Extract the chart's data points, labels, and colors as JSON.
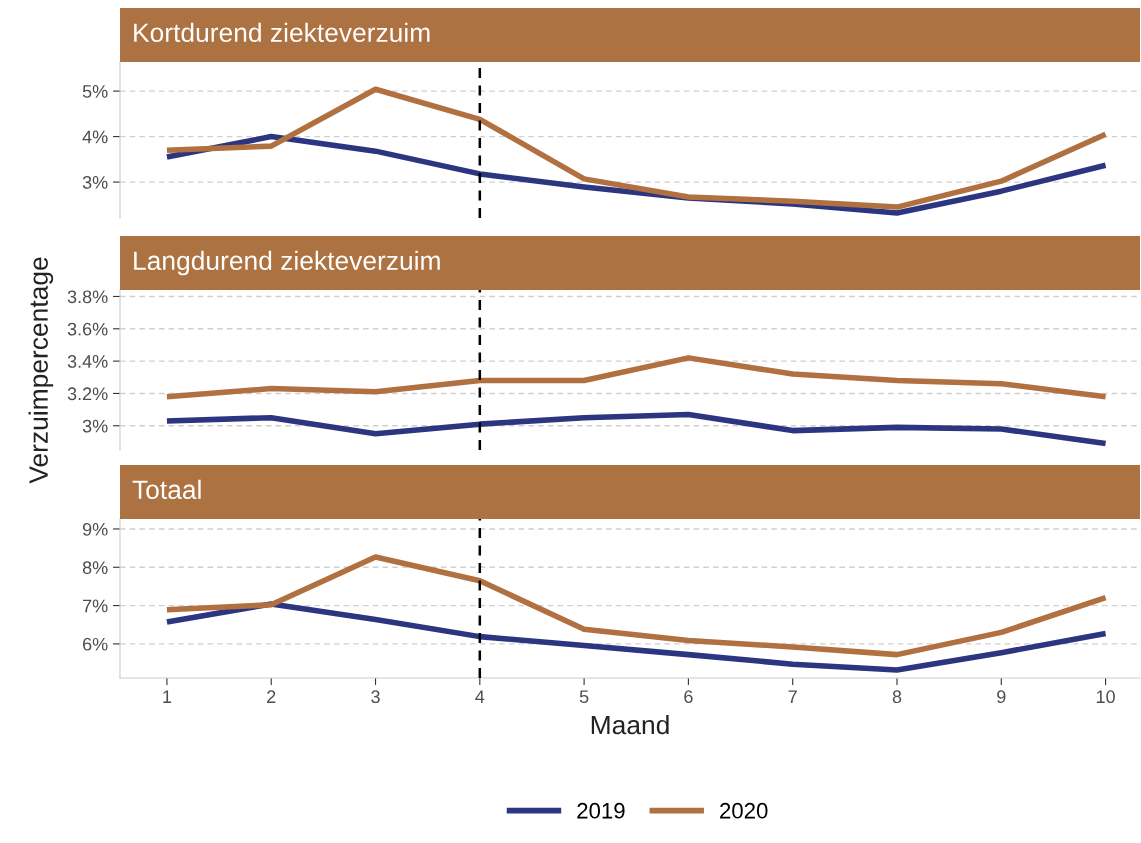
{
  "chart_data": [
    {
      "type": "line",
      "title": "Kortdurend ziekteverzuim",
      "x": [
        1,
        2,
        3,
        4,
        5,
        6,
        7,
        8,
        9,
        10
      ],
      "series": [
        {
          "name": "2019",
          "color": "#2b3580",
          "values": [
            3.55,
            4.0,
            3.68,
            3.18,
            2.89,
            2.65,
            2.52,
            2.32,
            2.8,
            3.37
          ]
        },
        {
          "name": "2020",
          "color": "#b07040",
          "values": [
            3.7,
            3.79,
            5.04,
            4.38,
            3.07,
            2.67,
            2.58,
            2.45,
            3.02,
            4.05
          ]
        }
      ],
      "xlim": [
        0.55,
        10.33
      ],
      "ylim": [
        2.21,
        5.64
      ],
      "yticks": [
        {
          "value": 3,
          "label": "3%"
        },
        {
          "value": 4,
          "label": "4%"
        },
        {
          "value": 5,
          "label": "5%"
        }
      ],
      "tick_labels": "y",
      "grid": "y",
      "line_style": "solid",
      "legend": "bottom",
      "ref_lines": [
        {
          "axis": "x",
          "value": 4,
          "color": "#000000",
          "line_style": "dashed"
        }
      ]
    },
    {
      "type": "line",
      "title": "Langdurend ziekteverzuim",
      "ylabel": "Verzuimpercentage",
      "x": [
        1,
        2,
        3,
        4,
        5,
        6,
        7,
        8,
        9,
        10
      ],
      "series": [
        {
          "name": "2019",
          "color": "#2b3580",
          "values": [
            3.03,
            3.05,
            2.95,
            3.01,
            3.05,
            3.07,
            2.97,
            2.99,
            2.98,
            2.89
          ]
        },
        {
          "name": "2020",
          "color": "#b07040",
          "values": [
            3.18,
            3.23,
            3.21,
            3.28,
            3.28,
            3.42,
            3.32,
            3.28,
            3.26,
            3.18
          ]
        }
      ],
      "xlim": [
        0.55,
        10.33
      ],
      "ylim": [
        2.85,
        3.84
      ],
      "yticks": [
        {
          "value": 3.0,
          "label": "3%"
        },
        {
          "value": 3.2,
          "label": "3.2%"
        },
        {
          "value": 3.4,
          "label": "3.4%"
        },
        {
          "value": 3.6,
          "label": "3.6%"
        },
        {
          "value": 3.8,
          "label": "3.8%"
        }
      ],
      "tick_labels": "y",
      "grid": "y",
      "line_style": "solid",
      "ref_lines": [
        {
          "axis": "x",
          "value": 4,
          "color": "#000000",
          "line_style": "dashed"
        }
      ]
    },
    {
      "type": "line",
      "title": "Totaal",
      "xlabel": "Maand",
      "x": [
        1,
        2,
        3,
        4,
        5,
        6,
        7,
        8,
        9,
        10
      ],
      "series": [
        {
          "name": "2019",
          "color": "#2b3580",
          "values": [
            6.57,
            7.04,
            6.64,
            6.19,
            5.96,
            5.72,
            5.47,
            5.32,
            5.77,
            6.27
          ]
        },
        {
          "name": "2020",
          "color": "#b07040",
          "values": [
            6.89,
            7.02,
            8.27,
            7.65,
            6.38,
            6.09,
            5.92,
            5.72,
            6.3,
            7.21
          ]
        }
      ],
      "xlim": [
        0.55,
        10.33
      ],
      "ylim": [
        5.11,
        9.26
      ],
      "xticks": [
        1,
        2,
        3,
        4,
        5,
        6,
        7,
        8,
        9,
        10
      ],
      "yticks": [
        {
          "value": 6,
          "label": "6%"
        },
        {
          "value": 7,
          "label": "7%"
        },
        {
          "value": 8,
          "label": "8%"
        },
        {
          "value": 9,
          "label": "9%"
        }
      ],
      "grid": "y",
      "line_style": "solid",
      "ref_lines": [
        {
          "axis": "x",
          "value": 4,
          "color": "#000000",
          "line_style": "dashed"
        }
      ]
    }
  ]
}
